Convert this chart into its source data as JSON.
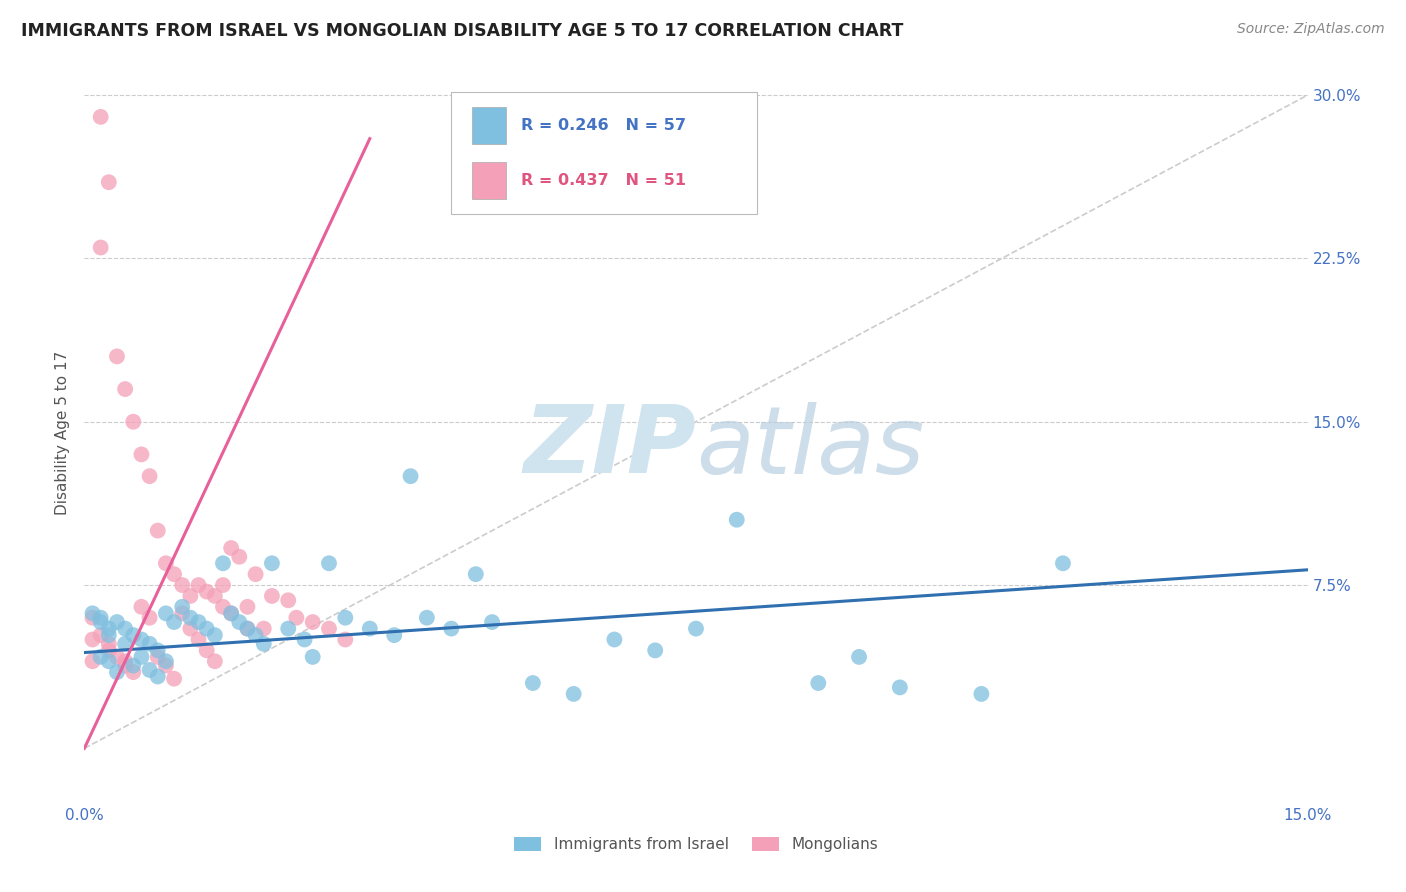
{
  "title": "IMMIGRANTS FROM ISRAEL VS MONGOLIAN DISABILITY AGE 5 TO 17 CORRELATION CHART",
  "source": "Source: ZipAtlas.com",
  "ylabel": "Disability Age 5 to 17",
  "ytick_values": [
    0.0,
    0.075,
    0.15,
    0.225,
    0.3
  ],
  "xmin": 0.0,
  "xmax": 0.15,
  "ymin": -0.025,
  "ymax": 0.315,
  "legend_israel_label": "Immigrants from Israel",
  "legend_mongolian_label": "Mongolians",
  "legend_israel_R": "R = 0.246",
  "legend_israel_N": "N = 57",
  "legend_mongolian_R": "R = 0.437",
  "legend_mongolian_N": "N = 51",
  "israel_color": "#7fbfdf",
  "mongolian_color": "#f4a0b8",
  "israel_line_color": "#3070b0",
  "mongolian_line_color": "#e8609a",
  "diagonal_color": "#cccccc",
  "grid_color": "#cccccc",
  "watermark_color": "#d0e4f0",
  "israel_trendline": [
    [
      0.0,
      0.15
    ],
    [
      0.044,
      0.082
    ]
  ],
  "mongolian_trendline": [
    [
      0.0,
      0.035
    ],
    [
      0.0,
      0.28
    ]
  ],
  "diagonal_line": [
    [
      0.0,
      0.15
    ],
    [
      0.0,
      0.3
    ]
  ],
  "israel_pts_x": [
    0.001,
    0.002,
    0.002,
    0.002,
    0.003,
    0.003,
    0.003,
    0.004,
    0.004,
    0.005,
    0.005,
    0.006,
    0.006,
    0.007,
    0.007,
    0.008,
    0.008,
    0.009,
    0.009,
    0.01,
    0.01,
    0.011,
    0.012,
    0.013,
    0.014,
    0.015,
    0.016,
    0.017,
    0.018,
    0.019,
    0.02,
    0.021,
    0.022,
    0.023,
    0.025,
    0.027,
    0.028,
    0.03,
    0.032,
    0.035,
    0.038,
    0.04,
    0.042,
    0.045,
    0.048,
    0.05,
    0.055,
    0.06,
    0.065,
    0.07,
    0.075,
    0.08,
    0.09,
    0.095,
    0.1,
    0.11,
    0.12
  ],
  "israel_pts_y": [
    0.062,
    0.06,
    0.058,
    0.042,
    0.055,
    0.052,
    0.04,
    0.058,
    0.035,
    0.055,
    0.048,
    0.052,
    0.038,
    0.05,
    0.042,
    0.048,
    0.036,
    0.045,
    0.033,
    0.062,
    0.04,
    0.058,
    0.065,
    0.06,
    0.058,
    0.055,
    0.052,
    0.085,
    0.062,
    0.058,
    0.055,
    0.052,
    0.048,
    0.085,
    0.055,
    0.05,
    0.042,
    0.085,
    0.06,
    0.055,
    0.052,
    0.125,
    0.06,
    0.055,
    0.08,
    0.058,
    0.03,
    0.025,
    0.05,
    0.045,
    0.055,
    0.105,
    0.03,
    0.042,
    0.028,
    0.025,
    0.085
  ],
  "mongol_pts_x": [
    0.001,
    0.001,
    0.001,
    0.002,
    0.002,
    0.002,
    0.003,
    0.003,
    0.003,
    0.004,
    0.004,
    0.005,
    0.005,
    0.005,
    0.006,
    0.006,
    0.007,
    0.007,
    0.008,
    0.008,
    0.009,
    0.009,
    0.01,
    0.01,
    0.011,
    0.011,
    0.012,
    0.012,
    0.013,
    0.013,
    0.014,
    0.014,
    0.015,
    0.015,
    0.016,
    0.016,
    0.017,
    0.017,
    0.018,
    0.018,
    0.019,
    0.02,
    0.02,
    0.021,
    0.022,
    0.023,
    0.025,
    0.026,
    0.028,
    0.03,
    0.032
  ],
  "mongol_pts_y": [
    0.06,
    0.05,
    0.04,
    0.29,
    0.23,
    0.052,
    0.048,
    0.26,
    0.045,
    0.18,
    0.042,
    0.165,
    0.04,
    0.038,
    0.15,
    0.035,
    0.135,
    0.065,
    0.125,
    0.06,
    0.1,
    0.042,
    0.085,
    0.038,
    0.08,
    0.032,
    0.075,
    0.062,
    0.07,
    0.055,
    0.075,
    0.05,
    0.072,
    0.045,
    0.07,
    0.04,
    0.065,
    0.075,
    0.092,
    0.062,
    0.088,
    0.065,
    0.055,
    0.08,
    0.055,
    0.07,
    0.068,
    0.06,
    0.058,
    0.055,
    0.05
  ]
}
